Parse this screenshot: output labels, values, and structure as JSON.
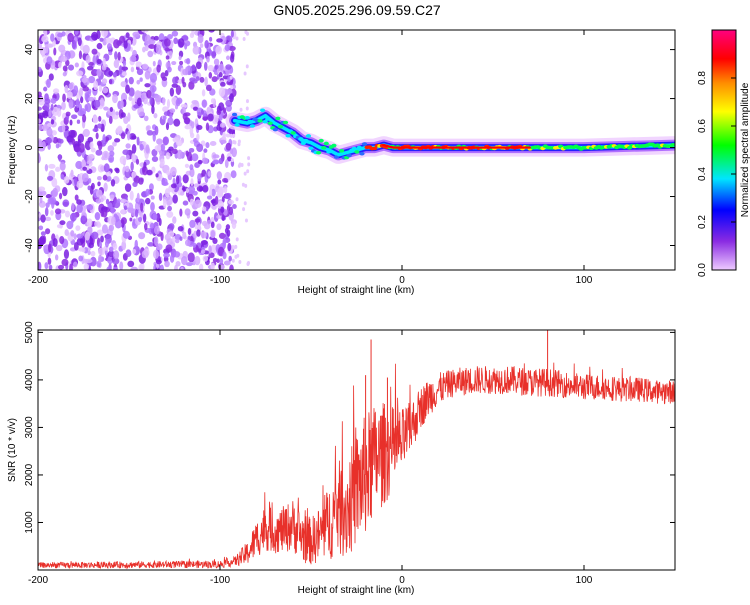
{
  "title": "GN05.2025.296.09.59.C27",
  "chart_data": [
    {
      "type": "heatmap",
      "name": "spectrogram",
      "xlabel": "Height of straight line (km)",
      "ylabel": "Frequency (Hz)",
      "xlim": [
        -200,
        150
      ],
      "ylim": [
        -50,
        48
      ],
      "xticks": [
        -200,
        -100,
        0,
        100
      ],
      "yticks": [
        40,
        20,
        0,
        -20,
        -40
      ],
      "noise_region_x": [
        -200,
        -92
      ],
      "signal_track": {
        "x": [
          -92,
          -85,
          -80,
          -75,
          -70,
          -65,
          -60,
          -55,
          -50,
          -45,
          -40,
          -35,
          -30,
          -25,
          -20,
          -15,
          -10,
          -5,
          0,
          10,
          30,
          60,
          100,
          150
        ],
        "freq": [
          11,
          10,
          11,
          13,
          10,
          8,
          6,
          3,
          2,
          0,
          -1,
          -3,
          -2,
          -1,
          0,
          0,
          1,
          0,
          0,
          0,
          0,
          0,
          0,
          1
        ]
      },
      "colorbar": {
        "label": "Normalized spectral amplitude",
        "range": [
          0,
          1
        ],
        "ticks": [
          "0.0",
          "0.2",
          "0.4",
          "0.6",
          "0.8"
        ],
        "tick_values": [
          0,
          0.2,
          0.4,
          0.6,
          0.8
        ],
        "colors": [
          "#eecbff",
          "#8a2be2",
          "#0000ff",
          "#00e5ff",
          "#00ff00",
          "#ffff00",
          "#ff8c00",
          "#ff0000",
          "#ff007f"
        ]
      }
    },
    {
      "type": "line",
      "name": "snr",
      "xlabel": "Height of straight line (km)",
      "ylabel": "SNR (10 * v/v)",
      "xlim": [
        -200,
        150
      ],
      "ylim": [
        0,
        5050
      ],
      "xticks": [
        -200,
        -100,
        0,
        100
      ],
      "yticks": [
        1000,
        2000,
        3000,
        4000,
        5000
      ],
      "color": "#e8302a",
      "envelope": {
        "x": [
          -200,
          -150,
          -100,
          -92,
          -85,
          -80,
          -75,
          -70,
          -65,
          -60,
          -55,
          -50,
          -45,
          -40,
          -35,
          -30,
          -25,
          -20,
          -15,
          -10,
          -5,
          0,
          5,
          10,
          15,
          20,
          25,
          30,
          40,
          50,
          60,
          70,
          80,
          90,
          100,
          110,
          120,
          130,
          140,
          150
        ],
        "mean": [
          100,
          110,
          120,
          180,
          350,
          650,
          900,
          800,
          850,
          950,
          700,
          600,
          750,
          1000,
          1300,
          1300,
          1700,
          2000,
          2300,
          2450,
          2550,
          2700,
          3000,
          3400,
          3650,
          3800,
          3900,
          3950,
          4000,
          4000,
          4000,
          3950,
          3950,
          3900,
          3850,
          3850,
          3800,
          3800,
          3750,
          3750
        ],
        "noise": [
          60,
          70,
          80,
          100,
          250,
          400,
          500,
          450,
          500,
          550,
          550,
          500,
          600,
          800,
          1000,
          1100,
          1200,
          1300,
          1200,
          1100,
          900,
          700,
          550,
          450,
          400,
          350,
          300,
          300,
          300,
          300,
          300,
          300,
          300,
          280,
          280,
          270,
          260,
          260,
          250,
          250
        ]
      },
      "spikes": [
        {
          "x": -17,
          "y": 4850
        },
        {
          "x": -20,
          "y": 4100
        },
        {
          "x": -8,
          "y": 4050
        },
        {
          "x": 80,
          "y": 5050
        }
      ]
    }
  ]
}
